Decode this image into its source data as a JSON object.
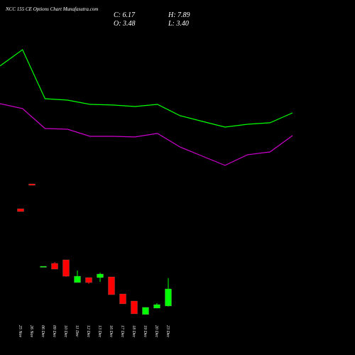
{
  "chart_data": {
    "type": "candlestick",
    "title": "NCC 155 CE Options Chart Munafasutra.com",
    "ohlc_legend": {
      "close": "C: 6.17",
      "open": "O: 3.48",
      "high": "H: 7.89",
      "low": "L: 3.40"
    },
    "categories": [
      "25 Nov",
      "26 Nov",
      "06 Dec",
      "09 Dec",
      "10 Dec",
      "11 Dec",
      "12 Dec",
      "13 Dec",
      "16 Dec",
      "17 Dec",
      "18 Dec",
      "19 Dec",
      "20 Dec",
      "23 Dec"
    ],
    "open": [
      18.82,
      22.74,
      9.64,
      10.2,
      10.76,
      7.18,
      7.96,
      7.96,
      8.07,
      5.38,
      4.26,
      2.14,
      3.14,
      3.48
    ],
    "high": [
      18.82,
      22.74,
      9.75,
      10.42,
      10.76,
      9.08,
      7.96,
      8.74,
      8.07,
      5.38,
      4.26,
      3.26,
      3.93,
      7.89
    ],
    "low": [
      18.38,
      22.52,
      9.64,
      9.3,
      8.07,
      7.18,
      6.95,
      7.29,
      5.27,
      3.82,
      2.25,
      2.14,
      3.14,
      3.4
    ],
    "close": [
      18.38,
      22.52,
      9.75,
      9.3,
      8.18,
      8.18,
      7.18,
      8.52,
      5.27,
      3.82,
      2.25,
      3.26,
      3.7,
      6.17
    ],
    "up_color": "#00ff00",
    "down_color": "#ff0000",
    "series": [
      {
        "color": "#00ff00",
        "values": [
          41.34,
          43.91,
          36.18,
          35.96,
          35.29,
          35.18,
          34.95,
          35.29,
          33.5,
          32.6,
          31.7,
          32.15,
          32.38,
          33.94
        ]
      },
      {
        "color": "#cc00cc",
        "values": [
          35.4,
          34.62,
          31.48,
          31.37,
          30.25,
          30.25,
          30.14,
          30.7,
          28.57,
          27.11,
          25.66,
          27.34,
          27.78,
          30.36
        ]
      }
    ],
    "ylim": [
      -4.25,
      51.75
    ]
  }
}
